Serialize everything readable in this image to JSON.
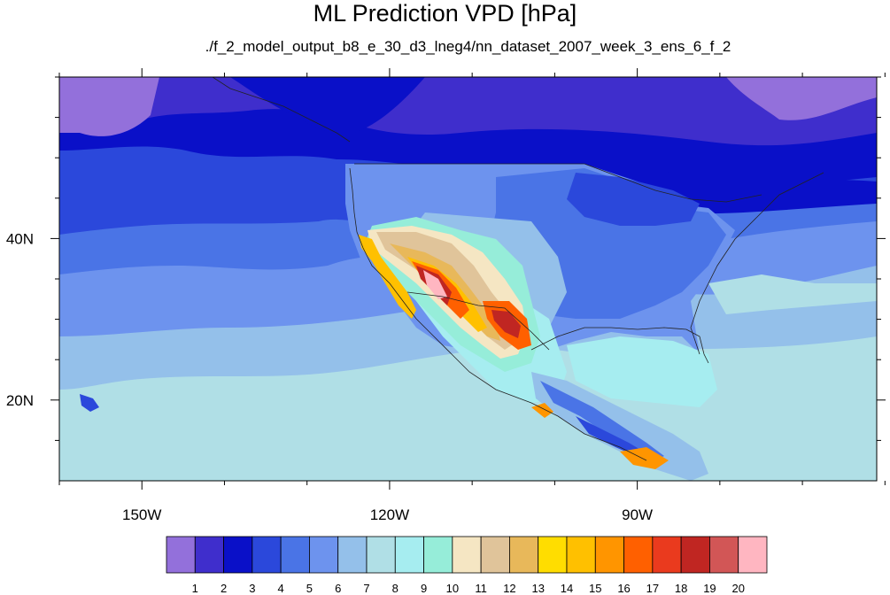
{
  "chart_data": {
    "type": "heatmap",
    "title": "ML Prediction VPD [hPa]",
    "subtitle": "./f_2_model_output_b8_e_30_d3_lneg4/nn_dataset_2007_week_3_ens_6_f_2",
    "unit": "hPa",
    "lon_range": [
      -160,
      -61
    ],
    "lat_range": [
      10,
      60
    ],
    "x_ticks": [
      {
        "value": -150,
        "label": "150W"
      },
      {
        "value": -120,
        "label": "120W"
      },
      {
        "value": -90,
        "label": "90W"
      }
    ],
    "y_ticks": [
      {
        "value": 40,
        "label": "40N"
      },
      {
        "value": 20,
        "label": "20N"
      }
    ],
    "colorbar": {
      "levels": [
        "1",
        "2",
        "3",
        "4",
        "5",
        "6",
        "7",
        "8",
        "9",
        "10",
        "11",
        "12",
        "13",
        "14",
        "15",
        "16",
        "17",
        "18",
        "19",
        "20"
      ],
      "colors": [
        "#9370DB",
        "#3F2ECC",
        "#0A10C8",
        "#2B48DB",
        "#4A74E6",
        "#6D93EE",
        "#94C0EA",
        "#B0DFE6",
        "#A6EDF0",
        "#96EDD9",
        "#F5E6C3",
        "#E0C49A",
        "#E8B85A",
        "#FFDD00",
        "#FFC000",
        "#FF9500",
        "#FF6000",
        "#EA3A1E",
        "#C02622",
        "#D25656",
        "#FFB6C1"
      ]
    }
  }
}
